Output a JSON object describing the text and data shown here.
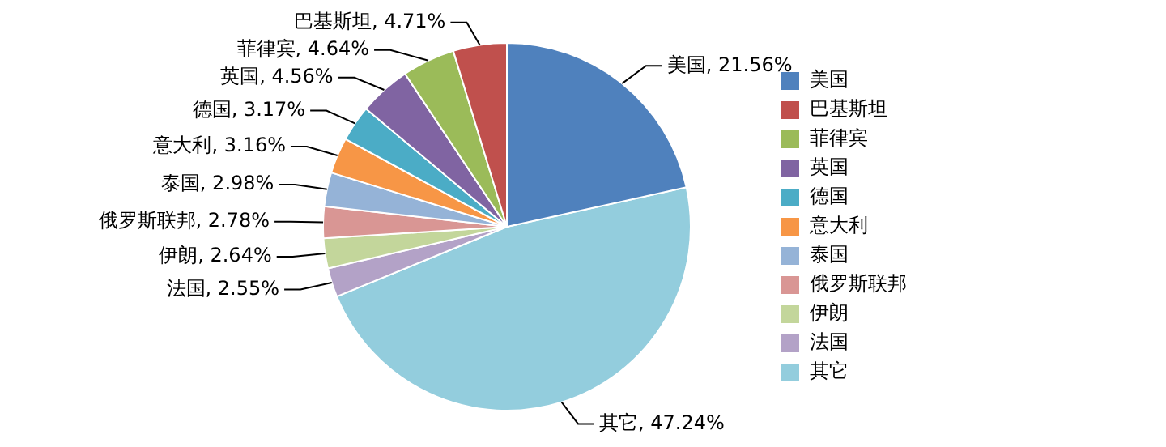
{
  "chart_data": {
    "type": "pie",
    "categories": [
      "美国",
      "巴基斯坦",
      "菲律宾",
      "英国",
      "德国",
      "意大利",
      "泰国",
      "俄罗斯联邦",
      "伊朗",
      "法国",
      "其它"
    ],
    "values": [
      21.56,
      4.71,
      4.64,
      4.56,
      3.17,
      3.16,
      2.98,
      2.78,
      2.64,
      2.55,
      47.24
    ],
    "value_labels": [
      "美国, 21.56%",
      "巴基斯坦, 4.71%",
      "菲律宾, 4.64%",
      "英国, 4.56%",
      "德国, 3.17%",
      "意大利, 3.16%",
      "泰国, 2.98%",
      "俄罗斯联邦, 2.78%",
      "伊朗, 2.64%",
      "法国, 2.55%",
      "其它, 47.24%"
    ],
    "colors": [
      "#4f81bd",
      "#c0504d",
      "#9bbb59",
      "#8064a2",
      "#4bacc6",
      "#f79646",
      "#95b3d7",
      "#d99694",
      "#c3d69b",
      "#b3a2c7",
      "#93cddd"
    ],
    "legend": "right"
  }
}
